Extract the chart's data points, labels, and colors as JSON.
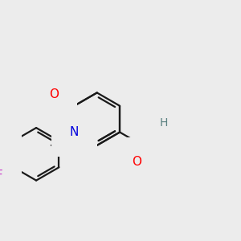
{
  "bg_color": "#ececec",
  "bond_color": "#1a1a1a",
  "bond_width": 1.6,
  "atom_bg": "#ececec",
  "colors": {
    "O": "#ff0000",
    "N": "#0000dd",
    "F": "#cc44cc",
    "H": "#5a8080",
    "C": "#1a1a1a"
  },
  "fontsize": 11
}
